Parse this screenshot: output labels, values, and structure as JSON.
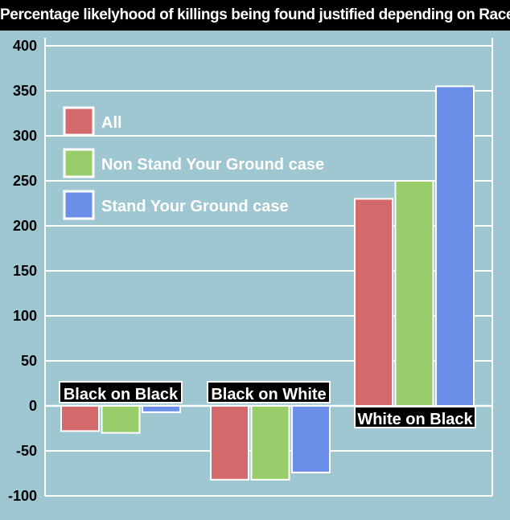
{
  "chart_data": {
    "type": "bar",
    "title": "Percentage likelyhood of killings being found justified depending on Race",
    "xlabel": "",
    "ylabel": "",
    "ylim": [
      -100,
      400
    ],
    "y_ticks": [
      400,
      350,
      300,
      250,
      200,
      150,
      100,
      50,
      0,
      -50,
      -100
    ],
    "grid": true,
    "legend_position": "top-left",
    "categories": [
      "Black on Black",
      "Black on White",
      "White on Black"
    ],
    "series": [
      {
        "name": "All",
        "color": "#d4696b",
        "values": [
          -28,
          -82,
          230
        ]
      },
      {
        "name": "Non Stand Your Ground case",
        "color": "#99cc6b",
        "values": [
          -30,
          -82,
          250
        ]
      },
      {
        "name": "Stand Your Ground case",
        "color": "#6b8fe8",
        "values": [
          -7,
          -74,
          355
        ]
      }
    ]
  },
  "colors": {
    "background": "#9ec7d1",
    "plot_background": "#9ec7d1",
    "gridline": "#ffffff",
    "title_bar": "#000000"
  }
}
